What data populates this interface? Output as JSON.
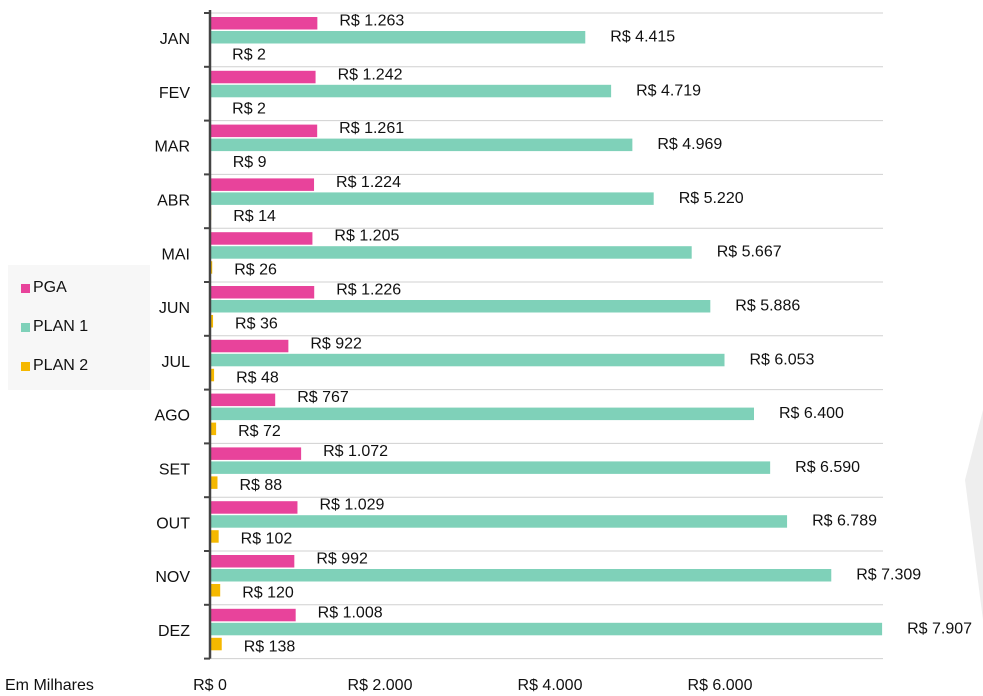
{
  "chart_data": {
    "type": "bar",
    "orientation": "horizontal",
    "x_label": "Em Milhares",
    "categories": [
      "JAN",
      "FEV",
      "MAR",
      "ABR",
      "MAI",
      "JUN",
      "JUL",
      "AGO",
      "SET",
      "OUT",
      "NOV",
      "DEZ"
    ],
    "series": [
      {
        "name": "PGA",
        "color": "#e8439b",
        "values": [
          1263,
          1242,
          1261,
          1224,
          1205,
          1226,
          922,
          767,
          1072,
          1029,
          992,
          1008
        ],
        "value_labels": [
          "R$ 1.263",
          "R$ 1.242",
          "R$ 1.261",
          "R$ 1.224",
          "R$ 1.205",
          "R$ 1.226",
          "R$ 922",
          "R$ 767",
          "R$ 1.072",
          "R$ 1.029",
          "R$ 992",
          "R$ 1.008"
        ]
      },
      {
        "name": "PLAN 1",
        "color": "#7fd1b9",
        "values": [
          4415,
          4719,
          4969,
          5220,
          5667,
          5886,
          6053,
          6400,
          6590,
          6789,
          7309,
          7907
        ],
        "value_labels": [
          "R$ 4.415",
          "R$ 4.719",
          "R$ 4.969",
          "R$ 5.220",
          "R$ 5.667",
          "R$ 5.886",
          "R$ 6.053",
          "R$ 6.400",
          "R$ 6.590",
          "R$ 6.789",
          "R$ 7.309",
          "R$ 7.907"
        ]
      },
      {
        "name": "PLAN 2",
        "color": "#f5b800",
        "values": [
          2,
          2,
          9,
          14,
          26,
          36,
          48,
          72,
          88,
          102,
          120,
          138
        ],
        "value_labels": [
          "R$ 2",
          "R$ 2",
          "R$ 9",
          "R$ 14",
          "R$ 26",
          "R$ 36",
          "R$ 48",
          "R$ 72",
          "R$ 88",
          "R$ 102",
          "R$ 120",
          "R$ 138"
        ]
      }
    ],
    "xlim": [
      0,
      8000
    ],
    "xticks": [
      {
        "value": 0,
        "label": "R$ 0"
      },
      {
        "value": 2000,
        "label": "R$ 2.000"
      },
      {
        "value": 4000,
        "label": "R$ 4.000"
      },
      {
        "value": 6000,
        "label": "R$ 6.000"
      }
    ],
    "grid": false,
    "legend": "left"
  }
}
